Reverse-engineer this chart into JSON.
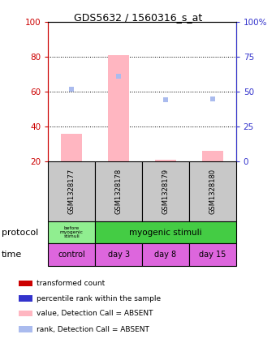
{
  "title": "GDS5632 / 1560316_s_at",
  "samples": [
    "GSM1328177",
    "GSM1328178",
    "GSM1328179",
    "GSM1328180"
  ],
  "bar_values_absent": [
    36,
    81,
    21,
    26
  ],
  "rank_values_absent": [
    52,
    61,
    44,
    45
  ],
  "ylim_left": [
    20,
    100
  ],
  "yticks_left": [
    20,
    40,
    60,
    80,
    100
  ],
  "yticks_right": [
    0,
    25,
    50,
    75,
    100
  ],
  "ytick_labels_right": [
    "0",
    "25",
    "50",
    "75",
    "100%"
  ],
  "bar_color_absent": "#FFB6C1",
  "rank_color_absent": "#AABBEE",
  "left_axis_color": "#CC0000",
  "right_axis_color": "#3333CC",
  "protocol_color_before": "#90EE90",
  "protocol_color_after": "#44CC44",
  "time_color": "#DD66DD",
  "sample_box_color": "#C8C8C8",
  "time_labels": [
    "control",
    "day 3",
    "day 8",
    "day 15"
  ],
  "legend_colors": [
    "#CC0000",
    "#3333CC",
    "#FFB6C1",
    "#AABBEE"
  ],
  "legend_labels": [
    "transformed count",
    "percentile rank within the sample",
    "value, Detection Call = ABSENT",
    "rank, Detection Call = ABSENT"
  ]
}
